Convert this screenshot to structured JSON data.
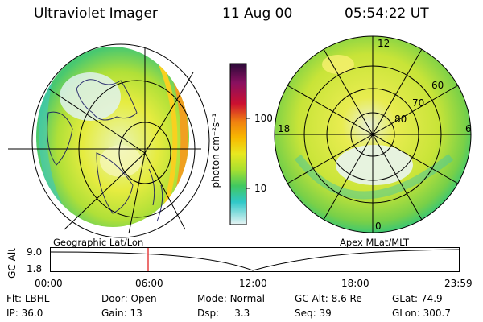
{
  "header": {
    "instrument": "Ultraviolet Imager",
    "date": "11 Aug 00",
    "time": "05:54:22 UT"
  },
  "colorbar": {
    "unit_label": "photon cm⁻²s⁻¹",
    "ticks": [
      "100",
      "10"
    ],
    "colors": [
      "#2a0a38",
      "#8a1060",
      "#cc1030",
      "#f08010",
      "#f8b800",
      "#e8e820",
      "#a8e030",
      "#40c860",
      "#30c8c8",
      "#d8f0f0"
    ]
  },
  "left_map": {
    "caption": "Geographic Lat/Lon"
  },
  "right_map": {
    "caption": "Apex MLat/MLT",
    "mlt_labels": [
      "12",
      "18",
      "6",
      "0"
    ],
    "lat_labels": [
      "60",
      "70",
      "80"
    ]
  },
  "timeline": {
    "axis_title": "GC Alt",
    "y_ticks": [
      "9.0",
      "1.8"
    ],
    "x_ticks": [
      "00:00",
      "06:00",
      "12:00",
      "18:00",
      "23:59"
    ]
  },
  "status": {
    "row1": [
      {
        "label": "Flt:",
        "value": "LBHL"
      },
      {
        "label": "Door:",
        "value": "Open"
      },
      {
        "label": "Mode:",
        "value": "Normal"
      },
      {
        "label": "GC Alt:",
        "value": "8.6 Re"
      },
      {
        "label": "GLat:",
        "value": "74.9"
      }
    ],
    "row2": [
      {
        "label": "IP:",
        "value": "36.0"
      },
      {
        "label": "Gain:",
        "value": "13"
      },
      {
        "label": "Dsp:",
        "value": "3.3"
      },
      {
        "label": "Seq:",
        "value": "39"
      },
      {
        "label": "GLon:",
        "value": "300.7"
      }
    ]
  }
}
